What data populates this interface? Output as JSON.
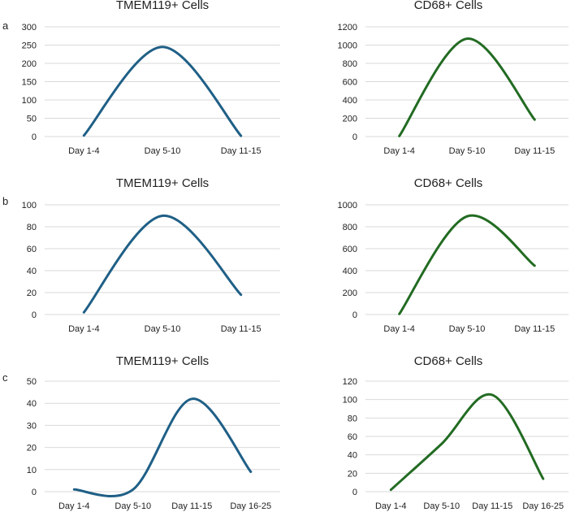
{
  "panel_labels": [
    "a",
    "b",
    "c"
  ],
  "colors": {
    "tmem119": "#1f5f86",
    "cd68": "#226b22",
    "grid": "#d9d9d9",
    "text": "#222222"
  },
  "chart_data": [
    {
      "panel": "a",
      "type": "line",
      "smooth": true,
      "title": "TMEM119+ Cells",
      "categories": [
        "Day 1-4",
        "Day 5-10",
        "Day 11-15"
      ],
      "series": [
        {
          "name": "TMEM119+ Cells",
          "values": [
            3,
            245,
            2
          ],
          "color": "#1f5f86"
        }
      ],
      "ylim": [
        0,
        300
      ],
      "yticks": [
        0,
        50,
        100,
        150,
        200,
        250,
        300
      ],
      "grid": true,
      "legend": "none"
    },
    {
      "panel": "a",
      "type": "line",
      "smooth": true,
      "title": "CD68+ Cells",
      "categories": [
        "Day 1-4",
        "Day 5-10",
        "Day 11-15"
      ],
      "series": [
        {
          "name": "CD68+ Cells",
          "values": [
            5,
            1070,
            185
          ],
          "color": "#226b22"
        }
      ],
      "ylim": [
        0,
        1200
      ],
      "yticks": [
        0,
        200,
        400,
        600,
        800,
        1000,
        1200
      ],
      "grid": true,
      "legend": "none"
    },
    {
      "panel": "b",
      "type": "line",
      "smooth": true,
      "title": "TMEM119+ Cells",
      "categories": [
        "Day 1-4",
        "Day 5-10",
        "Day 11-15"
      ],
      "series": [
        {
          "name": "TMEM119+ Cells",
          "values": [
            2,
            90,
            18
          ],
          "color": "#1f5f86"
        }
      ],
      "ylim": [
        0,
        100
      ],
      "yticks": [
        0,
        20,
        40,
        60,
        80,
        100
      ],
      "grid": true,
      "legend": "none"
    },
    {
      "panel": "b",
      "type": "line",
      "smooth": true,
      "title": "CD68+ Cells",
      "categories": [
        "Day 1-4",
        "Day 5-10",
        "Day 11-15"
      ],
      "series": [
        {
          "name": "CD68+ Cells",
          "values": [
            5,
            895,
            445
          ],
          "color": "#226b22"
        }
      ],
      "ylim": [
        0,
        1000
      ],
      "yticks": [
        0,
        200,
        400,
        600,
        800,
        1000
      ],
      "grid": true,
      "legend": "none"
    },
    {
      "panel": "c",
      "type": "line",
      "smooth": true,
      "title": "TMEM119+ Cells",
      "categories": [
        "Day 1-4",
        "Day 5-10",
        "Day 11-15",
        "Day 16-25"
      ],
      "series": [
        {
          "name": "TMEM119+ Cells",
          "values": [
            1,
            1,
            42,
            9
          ],
          "color": "#1f5f86"
        }
      ],
      "ylim": [
        0,
        50
      ],
      "yticks": [
        0,
        10,
        20,
        30,
        40,
        50
      ],
      "grid": true,
      "legend": "none"
    },
    {
      "panel": "c",
      "type": "line",
      "smooth": true,
      "title": "CD68+ Cells",
      "categories": [
        "Day 1-4",
        "Day 5-10",
        "Day 11-15",
        "Day 16-25"
      ],
      "series": [
        {
          "name": "CD68+ Cells",
          "values": [
            2,
            52,
            105,
            14
          ],
          "color": "#226b22"
        }
      ],
      "ylim": [
        0,
        120
      ],
      "yticks": [
        0,
        20,
        40,
        60,
        80,
        100,
        120
      ],
      "grid": true,
      "legend": "none"
    }
  ]
}
